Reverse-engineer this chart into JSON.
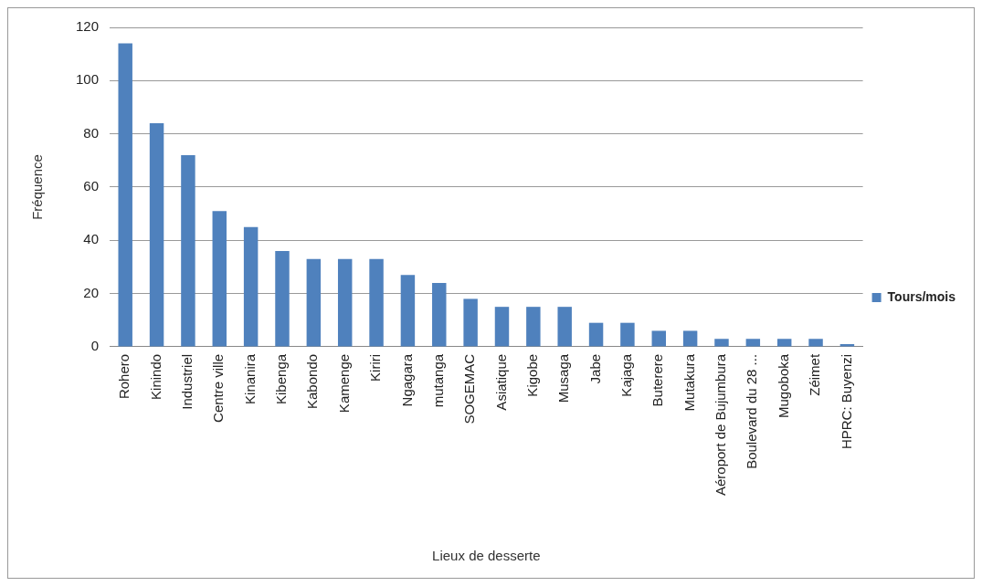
{
  "chart_data": {
    "type": "bar",
    "xlabel": "Lieux de desserte",
    "ylabel": "Fréquence",
    "categories": [
      "Rohero",
      "Kinindo",
      "Industriel",
      "Centre ville",
      "Kinanira",
      "Kibenga",
      "Kabondo",
      "Kamenge",
      "Kiriri",
      "Ngagara",
      "mutanga",
      "SOGEMAC",
      "Asiatique",
      "Kigobe",
      "Musaga",
      "Jabe",
      "Kajaga",
      "Buterere",
      "Mutakura",
      "Aéroport de Bujumbura",
      "Boulevard du 28 ...",
      "Mugoboka",
      "Zéimet",
      "HPRC: Buyenzi"
    ],
    "series": [
      {
        "name": "Tours/mois",
        "color": "#4f81bd",
        "values": [
          114,
          84,
          72,
          51,
          45,
          36,
          33,
          33,
          33,
          27,
          24,
          18,
          15,
          15,
          15,
          9,
          9,
          6,
          6,
          3,
          3,
          3,
          3,
          1
        ]
      }
    ],
    "ylim": [
      0,
      120
    ],
    "yticks": [
      0,
      20,
      40,
      60,
      80,
      100,
      120
    ],
    "grid": "y",
    "legend": "right"
  }
}
